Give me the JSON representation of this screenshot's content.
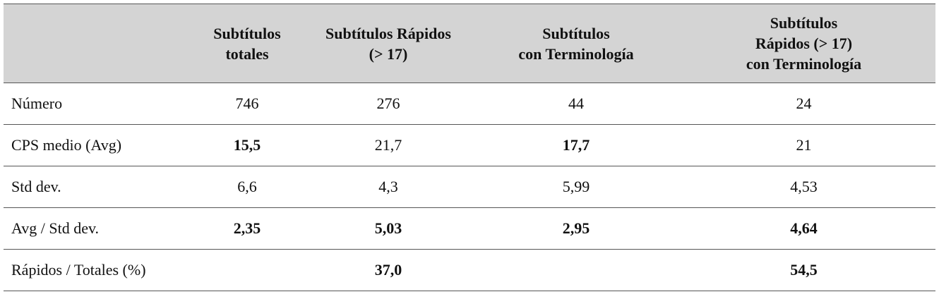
{
  "table": {
    "header": [
      null,
      [
        "Subtítulos",
        "totales"
      ],
      [
        "Subtítulos Rápidos",
        "(> 17)"
      ],
      [
        "Subtítulos",
        "con Terminología"
      ],
      [
        "Subtítulos",
        "Rápidos (> 17)",
        "con Terminología"
      ]
    ],
    "rows": [
      [
        "Número",
        "746",
        "276",
        "44",
        "24"
      ],
      [
        "CPS medio (Avg)",
        {
          "text": "15,5",
          "bold": true
        },
        "21,7",
        {
          "text": "17,7",
          "bold": true
        },
        "21"
      ],
      [
        "Std dev.",
        "6,6",
        "4,3",
        "5,99",
        "4,53"
      ],
      [
        "Avg / Std dev.",
        {
          "text": "2,35",
          "bold": true
        },
        {
          "text": "5,03",
          "bold": true
        },
        {
          "text": "2,95",
          "bold": true
        },
        {
          "text": "4,64",
          "bold": true
        }
      ],
      [
        "Rápidos / Totales (%)",
        null,
        {
          "text": "37,0",
          "bold": true
        },
        null,
        {
          "text": "54,5",
          "bold": true
        }
      ]
    ]
  }
}
